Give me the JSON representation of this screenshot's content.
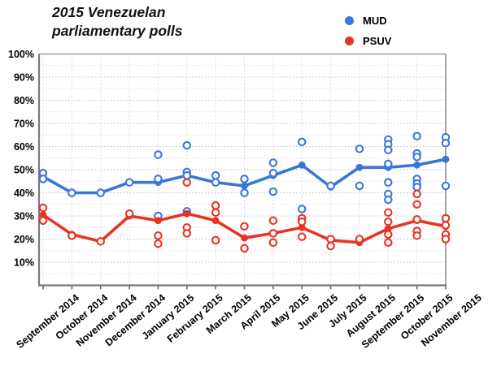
{
  "title": "2015 Venezuelan parliamentary polls",
  "legend": [
    {
      "label": "MUD",
      "color": "#3A76D9"
    },
    {
      "label": "PSUV",
      "color": "#EA3223"
    }
  ],
  "chart_data": {
    "type": "line",
    "title": "2015 Venezuelan parliamentary polls",
    "xlabel": "",
    "ylabel": "",
    "ylim": [
      0,
      100
    ],
    "grid": true,
    "legend_position": "top-right",
    "y_tick_labels": [
      "10%",
      "20%",
      "30%",
      "40%",
      "50%",
      "60%",
      "70%",
      "80%",
      "90%",
      "100%"
    ],
    "categories": [
      "September 2014",
      "October 2014",
      "November 2014",
      "December 2014",
      "January 2015",
      "February 2015",
      "March 2015",
      "April 2015",
      "May 2015",
      "June 2015",
      "July 2015",
      "August 2015",
      "September 2015",
      "October 2015",
      "November 2015"
    ],
    "series": [
      {
        "name": "MUD trend",
        "role": "trend",
        "color": "#3A76D9",
        "values": [
          47,
          40,
          40,
          44.5,
          44.5,
          47.5,
          44.5,
          43,
          47.5,
          52,
          42.5,
          51,
          51,
          52,
          54.5
        ]
      },
      {
        "name": "PSUV trend",
        "role": "trend",
        "color": "#EA3223",
        "values": [
          30.5,
          22,
          19,
          30,
          28,
          31,
          28,
          20.5,
          22.5,
          25,
          19.5,
          18.5,
          24.5,
          28,
          25.5
        ]
      },
      {
        "name": "MUD polls",
        "role": "scatter",
        "color": "#3A76D9",
        "points_by_month": [
          [
            48.5,
            46
          ],
          [
            40
          ],
          [
            40
          ],
          [
            44.5
          ],
          [
            56.5,
            46,
            30
          ],
          [
            60.5,
            49,
            47.5,
            32
          ],
          [
            47.5,
            44.5
          ],
          [
            46,
            40
          ],
          [
            53,
            48.5,
            40.5
          ],
          [
            62,
            33
          ],
          [
            43
          ],
          [
            59,
            43
          ],
          [
            63,
            61,
            58.5,
            52.5,
            44.5,
            39.5,
            37
          ],
          [
            64.5,
            57,
            55.5,
            46,
            44,
            42.5
          ],
          [
            64,
            61.5,
            43
          ]
        ]
      },
      {
        "name": "PSUV polls",
        "role": "scatter",
        "color": "#EA3223",
        "points_by_month": [
          [
            33.5,
            28
          ],
          [
            21.5
          ],
          [
            19
          ],
          [
            31
          ],
          [
            21.5,
            18
          ],
          [
            44.5,
            25,
            22.5
          ],
          [
            34.5,
            31.5,
            19.5
          ],
          [
            25.5,
            16
          ],
          [
            28,
            22.5,
            18.5
          ],
          [
            29,
            27.5,
            21
          ],
          [
            20,
            17
          ],
          [
            20
          ],
          [
            31.5,
            27.5,
            22,
            18.5
          ],
          [
            39.5,
            35,
            28.5,
            23.5,
            21.5
          ],
          [
            29,
            26,
            22,
            20
          ]
        ]
      }
    ]
  }
}
